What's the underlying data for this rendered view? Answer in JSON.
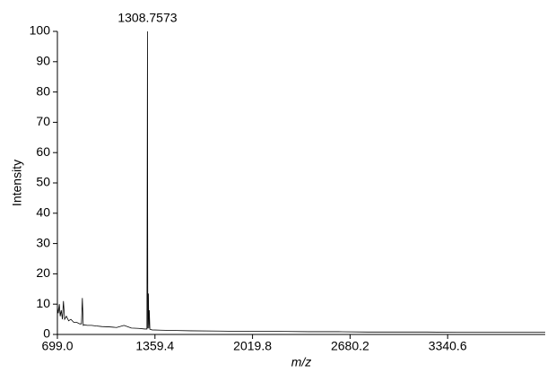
{
  "chart_data": {
    "type": "line",
    "x_label": "m/z",
    "y_label": "Intensity",
    "x": [
      699,
      705,
      712,
      718,
      725,
      733,
      740,
      748,
      760,
      775,
      790,
      810,
      830,
      850,
      862,
      868,
      874,
      880,
      900,
      930,
      960,
      1000,
      1050,
      1100,
      1150,
      1200,
      1250,
      1290,
      1305,
      1308.7573,
      1309.7573,
      1311,
      1315,
      1318,
      1321,
      1325,
      1340,
      1400,
      1500,
      1600,
      1800,
      2000,
      2200,
      2400,
      2600,
      2800,
      3000,
      3200,
      3400,
      3600,
      3800,
      4001
    ],
    "series": [
      {
        "color": "#000000",
        "values": [
          9,
          7,
          10,
          6,
          8,
          5,
          11,
          5,
          6,
          4.5,
          5,
          4,
          4,
          3.5,
          3.5,
          12,
          3,
          3.2,
          3,
          3,
          2.8,
          2.6,
          2.5,
          2.3,
          3,
          2.1,
          2,
          1.8,
          1.8,
          100,
          41,
          2,
          13.5,
          2,
          8,
          1.7,
          1.5,
          1.4,
          1.3,
          1.2,
          1.1,
          1.0,
          1.0,
          0.9,
          0.9,
          0.8,
          0.8,
          0.8,
          0.7,
          0.7,
          0.7,
          0.7
        ]
      }
    ],
    "annotations": [
      {
        "text": "1308.7573",
        "x": 1308.7573,
        "y": 100
      }
    ],
    "xlim": [
      699.0,
      4001.0
    ],
    "xticks": [
      {
        "value": 699.0,
        "label": "699.0"
      },
      1359.4,
      2019.8,
      2680.2,
      3340.6
    ],
    "ylim": [
      0,
      100
    ],
    "yticks": [
      0,
      10,
      20,
      30,
      40,
      50,
      60,
      70,
      80,
      90,
      100
    ]
  }
}
